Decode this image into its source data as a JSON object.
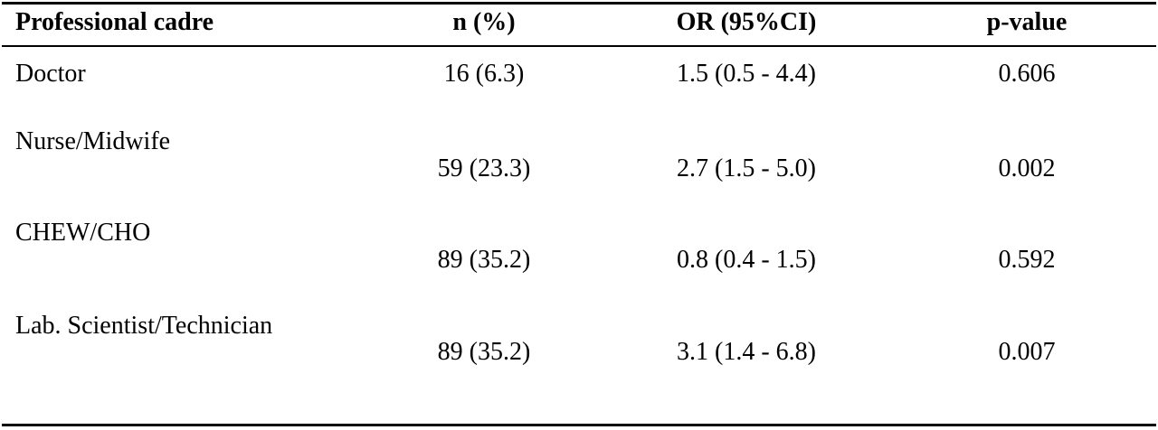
{
  "table": {
    "headers": [
      "Professional cadre",
      "n (%)",
      "OR (95%CI)",
      "p-value"
    ],
    "rows": [
      {
        "cadre": "Doctor",
        "n_pct": "16 (6.3)",
        "or_ci": "1.5 (0.5 - 4.4)",
        "p_value": "0.606"
      },
      {
        "cadre": "Nurse/Midwife",
        "n_pct": "59 (23.3)",
        "or_ci": "2.7 (1.5 - 5.0)",
        "p_value": "0.002"
      },
      {
        "cadre": "CHEW/CHO",
        "n_pct": "89 (35.2)",
        "or_ci": "0.8 (0.4 - 1.5)",
        "p_value": "0.592"
      },
      {
        "cadre": "Lab. Scientist/Technician",
        "n_pct": "89 (35.2)",
        "or_ci": "3.1 (1.4 - 6.8)",
        "p_value": "0.007"
      }
    ]
  }
}
